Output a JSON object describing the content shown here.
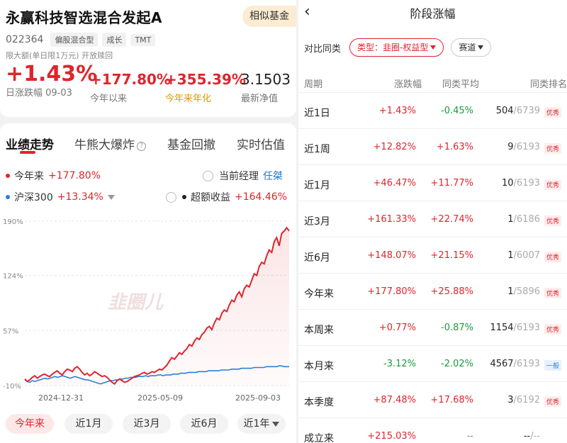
{
  "fund": {
    "name": "永赢科技智选混合发起A",
    "similar_btn": "相似基金",
    "code": "022364",
    "tags": [
      "偏股混合型",
      "成长",
      "TMT"
    ],
    "limit_text": "限大额(单日限1万元)  开放赎回",
    "daily_change": "+1.43%",
    "daily_label": "日涨跌幅 09-03",
    "ytd": "+177.80%",
    "ytd_label": "今年以来",
    "annualized": "+355.39%",
    "annualized_label": "今年来年化",
    "nav": "3.1503",
    "nav_label": "最新净值"
  },
  "tabs": [
    "业绩走势",
    "牛熊大爆炸",
    "基金回撤",
    "实时估值"
  ],
  "legend": {
    "fund_name": "今年来",
    "fund_value": "+177.80%",
    "bench_name": "沪深300",
    "bench_value": "+13.34%",
    "manager_label": "当前经理",
    "manager_name": "任桀",
    "excess_label": "超额收益",
    "excess_value": "+164.46%"
  },
  "watermark": "韭圈儿",
  "periods": [
    "今年来",
    "近1月",
    "近3月",
    "近6月",
    "近1年"
  ],
  "colors": {
    "up": "#e0242d",
    "down": "#1a9a3e",
    "bench": "#2b7fd8",
    "accent": "#e0242d"
  },
  "chart_data": {
    "type": "line",
    "ytick_labels": [
      "190%",
      "124%",
      "57%",
      "-10%"
    ],
    "yticks": [
      190,
      124,
      57,
      -10
    ],
    "ylim": [
      -10,
      190
    ],
    "xtick_labels": [
      "2024-12-31",
      "2025-05-09",
      "2025-09-03"
    ],
    "series": [
      {
        "name": "今年来",
        "color": "#e0242d",
        "values": [
          -2,
          -5,
          -3,
          0,
          2,
          -1,
          1,
          3,
          4,
          2,
          1,
          4,
          6,
          8,
          5,
          3,
          7,
          10,
          9,
          7,
          11,
          13,
          10,
          6,
          3,
          5,
          2,
          4,
          7,
          5,
          3,
          1,
          2,
          0,
          -3,
          -6,
          -8,
          -4,
          -2,
          -4,
          -6,
          -5,
          -3,
          -1,
          1,
          2,
          3,
          5,
          6,
          4,
          5,
          7,
          6,
          8,
          10,
          9,
          12,
          15,
          20,
          24,
          22,
          26,
          30,
          28,
          32,
          35,
          40,
          38,
          44,
          48,
          46,
          52,
          55,
          60,
          62,
          58,
          66,
          72,
          70,
          78,
          82,
          80,
          88,
          94,
          92,
          100,
          104,
          98,
          108,
          112,
          110,
          118,
          126,
          124,
          135,
          140,
          138,
          148,
          155,
          152,
          165,
          170,
          160,
          175,
          178,
          182,
          178
        ]
      },
      {
        "name": "沪深300",
        "color": "#2b7fd8",
        "values": [
          -3,
          -5,
          -6,
          -4,
          -5,
          -4,
          -3,
          -2,
          -1,
          -2,
          -1,
          0,
          1,
          0,
          1,
          2,
          1,
          0,
          -1,
          0,
          1,
          0,
          -1,
          -2,
          -3,
          -3,
          -4,
          -5,
          -6,
          -7,
          -8,
          -7,
          -6,
          -5,
          -4,
          -4,
          -3,
          -3,
          -2,
          -2,
          -1,
          -1,
          0,
          0,
          0,
          1,
          1,
          1,
          2,
          1,
          2,
          2,
          2,
          3,
          3,
          2,
          3,
          3,
          3,
          4,
          4,
          4,
          5,
          5,
          5,
          6,
          6,
          6,
          6,
          7,
          7,
          7,
          7,
          8,
          8,
          8,
          8,
          8,
          9,
          9,
          9,
          9,
          10,
          10,
          10,
          10,
          11,
          11,
          11,
          11,
          11,
          12,
          12,
          12,
          12,
          12,
          13,
          13,
          13,
          13,
          13,
          14,
          14,
          13,
          13,
          13
        ]
      }
    ]
  },
  "right": {
    "title": "阶段涨幅",
    "filter_label": "对比同类",
    "type_chip": "类型：韭圈-权益型",
    "track_chip": "赛道",
    "headers": [
      "周期",
      "涨跌幅",
      "同类平均",
      "同类排名"
    ],
    "rows": [
      {
        "period": "近1日",
        "chg": "+1.43%",
        "avg": "-0.45%",
        "rank": "504",
        "total": "/6739",
        "badge": "优秀"
      },
      {
        "period": "近1周",
        "chg": "+12.82%",
        "avg": "+1.63%",
        "rank": "9",
        "total": "/6193",
        "badge": "优秀"
      },
      {
        "period": "近1月",
        "chg": "+46.47%",
        "avg": "+11.77%",
        "rank": "10",
        "total": "/6193",
        "badge": "优秀"
      },
      {
        "period": "近3月",
        "chg": "+161.33%",
        "avg": "+22.74%",
        "rank": "1",
        "total": "/6186",
        "badge": "优秀"
      },
      {
        "period": "近6月",
        "chg": "+148.07%",
        "avg": "+21.15%",
        "rank": "1",
        "total": "/6007",
        "badge": "优秀"
      },
      {
        "period": "今年来",
        "chg": "+177.80%",
        "avg": "+25.88%",
        "rank": "1",
        "total": "/5896",
        "badge": "优秀"
      },
      {
        "period": "本周来",
        "chg": "+0.77%",
        "avg": "-0.87%",
        "rank": "1154",
        "total": "/6193",
        "badge": "优秀"
      },
      {
        "period": "本月来",
        "chg": "-3.12%",
        "avg": "-2.02%",
        "rank": "4567",
        "total": "/6193",
        "badge": "一般"
      },
      {
        "period": "本季度",
        "chg": "+87.48%",
        "avg": "+17.68%",
        "rank": "3",
        "total": "/6192",
        "badge": "优秀"
      },
      {
        "period": "成立来",
        "chg": "+215.03%",
        "avg": "--",
        "rank": "--",
        "total": "/--",
        "badge": ""
      }
    ]
  }
}
